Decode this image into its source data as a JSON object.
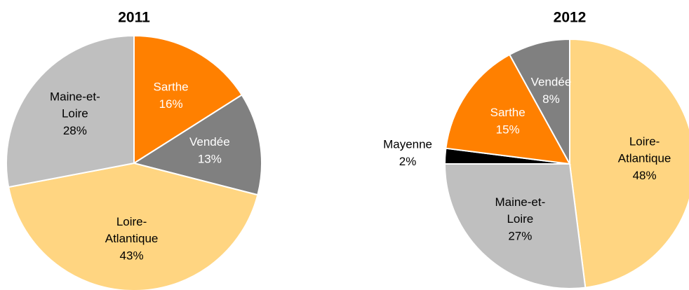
{
  "chart_data": [
    {
      "type": "pie",
      "title": "2011",
      "categories": [
        "Sarthe",
        "Vendée",
        "Loire-Atlantique",
        "Maine-et-Loire"
      ],
      "values": [
        16,
        13,
        43,
        28
      ],
      "value_labels": [
        "16%",
        "13%",
        "43%",
        "28%"
      ],
      "colors": [
        "#ff8000",
        "#808080",
        "#ffd581",
        "#bfbfbf"
      ]
    },
    {
      "type": "pie",
      "title": "2012",
      "categories": [
        "Loire-Atlantique",
        "Maine-et-Loire",
        "Mayenne",
        "Sarthe",
        "Vendée"
      ],
      "values": [
        48,
        27,
        2,
        15,
        8
      ],
      "value_labels": [
        "48%",
        "27%",
        "2%",
        "15%",
        "8%"
      ],
      "colors": [
        "#ffd581",
        "#bfbfbf",
        "#000000",
        "#ff8000",
        "#808080"
      ]
    }
  ]
}
